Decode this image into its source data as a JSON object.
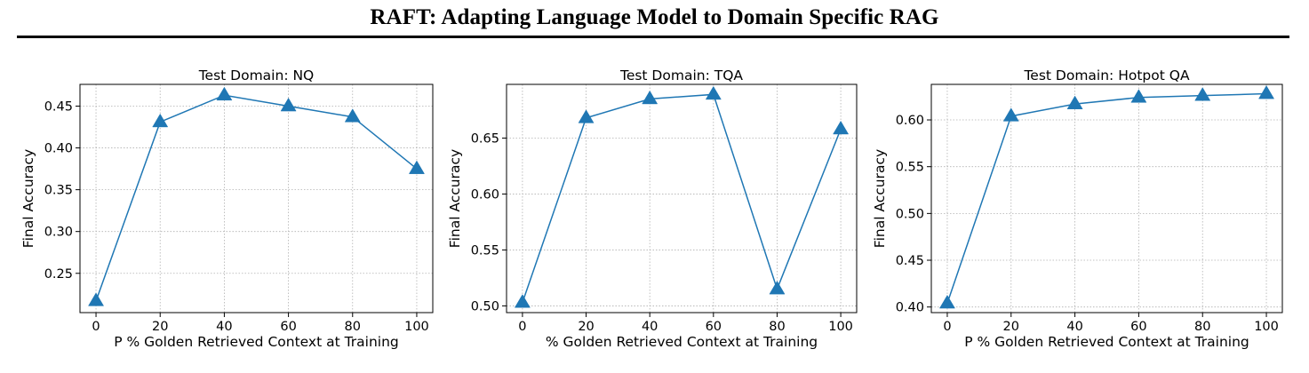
{
  "figure_title": "RAFT: Adapting Language Model to Domain Specific RAG",
  "colors": {
    "series": "#1f77b4",
    "grid": "#b0b0b0",
    "axes": "#000000"
  },
  "chart_data": [
    {
      "type": "line",
      "title": "Test Domain: NQ",
      "xlabel": "P % Golden Retrieved Context at Training",
      "ylabel": "Final Accuracy",
      "x": [
        0,
        20,
        40,
        60,
        80,
        100
      ],
      "y": [
        0.217,
        0.431,
        0.463,
        0.45,
        0.437,
        0.375
      ],
      "xticks": [
        0,
        20,
        40,
        60,
        80,
        100
      ],
      "yticks": [
        0.25,
        0.3,
        0.35,
        0.4,
        0.45
      ],
      "ytick_labels": [
        "0.25",
        "0.30",
        "0.35",
        "0.40",
        "0.45"
      ],
      "xlim": [
        -5,
        105
      ],
      "ylim": [
        0.203,
        0.476
      ],
      "marker": "triangle",
      "grid": true
    },
    {
      "type": "line",
      "title": "Test Domain: TQA",
      "xlabel": "% Golden Retrieved Context at Training",
      "ylabel": "Final Accuracy",
      "x": [
        0,
        20,
        40,
        60,
        80,
        100
      ],
      "y": [
        0.503,
        0.668,
        0.685,
        0.689,
        0.515,
        0.658
      ],
      "xticks": [
        0,
        20,
        40,
        60,
        80,
        100
      ],
      "yticks": [
        0.5,
        0.55,
        0.6,
        0.65
      ],
      "ytick_labels": [
        "0.50",
        "0.55",
        "0.60",
        "0.65"
      ],
      "xlim": [
        -5,
        105
      ],
      "ylim": [
        0.494,
        0.698
      ],
      "marker": "triangle",
      "grid": true
    },
    {
      "type": "line",
      "title": "Test Domain: Hotpot QA",
      "xlabel": "P % Golden Retrieved Context at Training",
      "ylabel": "Final Accuracy",
      "x": [
        0,
        20,
        40,
        60,
        80,
        100
      ],
      "y": [
        0.404,
        0.604,
        0.617,
        0.624,
        0.626,
        0.628
      ],
      "xticks": [
        0,
        20,
        40,
        60,
        80,
        100
      ],
      "yticks": [
        0.4,
        0.45,
        0.5,
        0.55,
        0.6
      ],
      "ytick_labels": [
        "0.40",
        "0.45",
        "0.50",
        "0.55",
        "0.60"
      ],
      "xlim": [
        -5,
        105
      ],
      "ylim": [
        0.394,
        0.638
      ],
      "marker": "triangle",
      "grid": true
    }
  ]
}
